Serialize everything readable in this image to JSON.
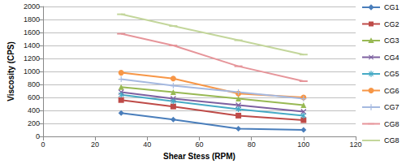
{
  "chart_data": {
    "type": "line",
    "x_label": "Shear Stess (RPM)",
    "y_label": "Viscosity (CPS)",
    "x": [
      30,
      50,
      75,
      100
    ],
    "xlim": [
      0,
      120
    ],
    "xticks": [
      0,
      20,
      40,
      60,
      80,
      100,
      120
    ],
    "ylim": [
      0,
      2000
    ],
    "yticks": [
      0,
      200,
      400,
      600,
      800,
      1000,
      1200,
      1400,
      1600,
      1800,
      2000
    ],
    "grid": true,
    "legend": "right",
    "series": [
      {
        "name": "CG1",
        "color": "#4a7ebb",
        "marker": "diamond",
        "values": [
          360,
          260,
          120,
          100
        ]
      },
      {
        "name": "CG2",
        "color": "#be4b48",
        "marker": "square",
        "values": [
          560,
          460,
          320,
          250
        ]
      },
      {
        "name": "CG3",
        "color": "#98b954",
        "marker": "triangle",
        "values": [
          760,
          680,
          580,
          480
        ]
      },
      {
        "name": "CG4",
        "color": "#7d60a0",
        "marker": "x",
        "values": [
          680,
          580,
          480,
          380
        ]
      },
      {
        "name": "CG5",
        "color": "#46aac5",
        "marker": "asterisk",
        "values": [
          640,
          540,
          420,
          320
        ]
      },
      {
        "name": "CG6",
        "color": "#f79646",
        "marker": "circle",
        "values": [
          980,
          890,
          660,
          600
        ]
      },
      {
        "name": "CG7",
        "color": "#a5b9e0",
        "marker": "plus",
        "values": [
          880,
          780,
          680,
          580
        ]
      },
      {
        "name": "CG8",
        "color": "#e6959a",
        "marker": "dash",
        "values": [
          1580,
          1400,
          1080,
          850
        ]
      },
      {
        "name": "CG8",
        "color": "#c3d69b",
        "marker": "dash",
        "values": [
          1880,
          1700,
          1480,
          1260
        ]
      }
    ]
  }
}
